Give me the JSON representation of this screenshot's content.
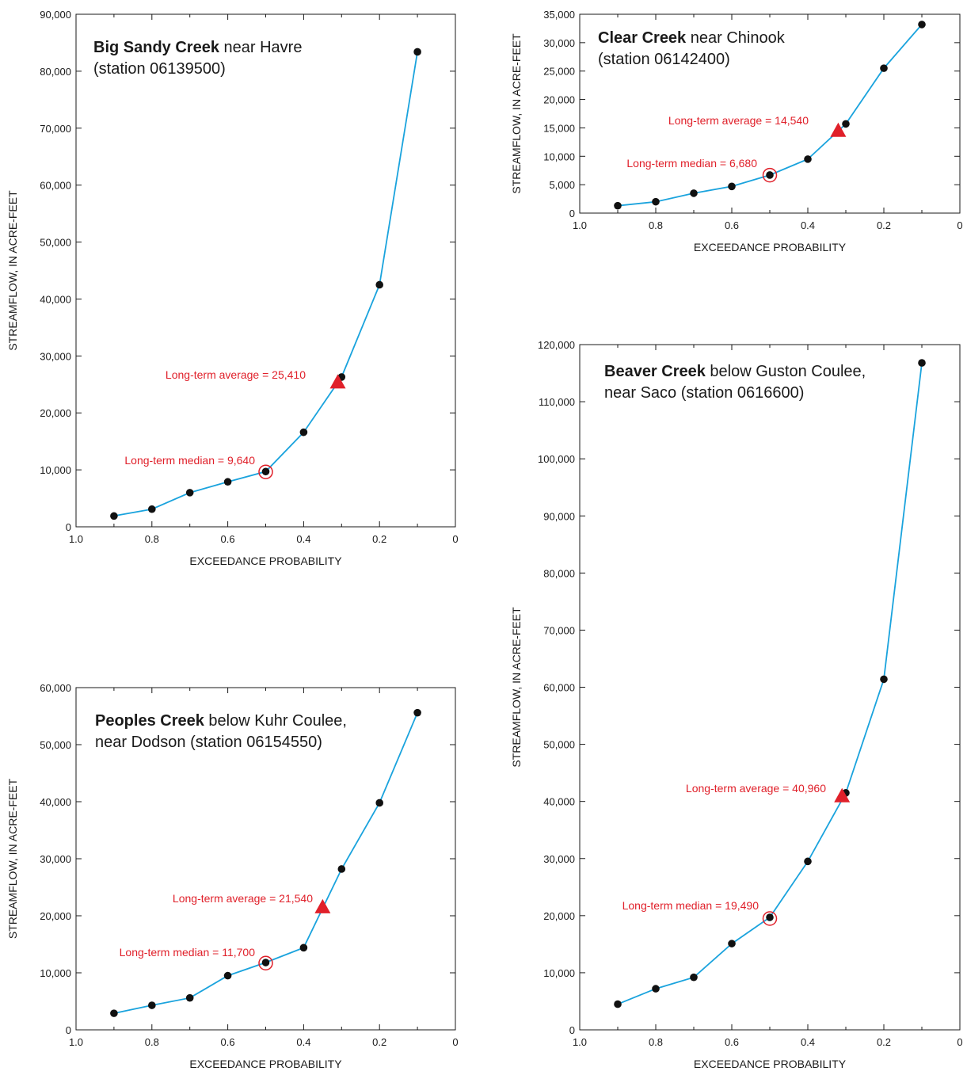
{
  "colors": {
    "line": "#1aa3dd",
    "point": "#111111",
    "annotation": "#e0202a",
    "axis": "#1a1a1a"
  },
  "chart_data": [
    {
      "type": "line",
      "title_bold": "Big Sandy Creek",
      "title_rest": " near Havre",
      "title_line2": "(station 06139500)",
      "xlabel": "EXCEEDANCE PROBABILITY",
      "ylabel": "STREAMFLOW, IN ACRE-FEET",
      "xlim": [
        1.0,
        0.0
      ],
      "ylim": [
        0,
        90000
      ],
      "xticks": [
        1.0,
        0.8,
        0.6,
        0.4,
        0.2,
        0
      ],
      "xtick_labels": [
        "1.0",
        "0.8",
        "0.6",
        "0.4",
        "0.2",
        "0"
      ],
      "yticks": [
        0,
        10000,
        20000,
        30000,
        40000,
        50000,
        60000,
        70000,
        80000,
        90000
      ],
      "ytick_labels": [
        "0",
        "10,000",
        "20,000",
        "30,000",
        "40,000",
        "50,000",
        "60,000",
        "70,000",
        "80,000",
        "90,000"
      ],
      "x": [
        0.9,
        0.8,
        0.7,
        0.6,
        0.5,
        0.4,
        0.3,
        0.2,
        0.1
      ],
      "y": [
        1900,
        3100,
        6000,
        7900,
        9700,
        16600,
        26300,
        42500,
        83400
      ],
      "average": {
        "label": "Long-term average = 25,410",
        "x": 0.31,
        "y": 25410
      },
      "median": {
        "label": "Long-term median = 9,640",
        "x": 0.5,
        "y": 9640
      }
    },
    {
      "type": "line",
      "title_bold": "Clear Creek",
      "title_rest": " near Chinook",
      "title_line2": "(station 06142400)",
      "xlabel": "EXCEEDANCE PROBABILITY",
      "ylabel": "STREAMFLOW, IN ACRE-FEET",
      "xlim": [
        1.0,
        0.0
      ],
      "ylim": [
        0,
        35000
      ],
      "xticks": [
        1.0,
        0.8,
        0.6,
        0.4,
        0.2,
        0
      ],
      "xtick_labels": [
        "1.0",
        "0.8",
        "0.6",
        "0.4",
        "0.2",
        "0"
      ],
      "yticks": [
        0,
        5000,
        10000,
        15000,
        20000,
        25000,
        30000,
        35000
      ],
      "ytick_labels": [
        "0",
        "5,000",
        "10,000",
        "15,000",
        "20,000",
        "25,000",
        "30,000",
        "35,000"
      ],
      "x": [
        0.9,
        0.8,
        0.7,
        0.6,
        0.5,
        0.4,
        0.3,
        0.2,
        0.1
      ],
      "y": [
        1300,
        2000,
        3500,
        4700,
        6700,
        9500,
        15700,
        25500,
        33200
      ],
      "average": {
        "label": "Long-term average = 14,540",
        "x": 0.32,
        "y": 14540
      },
      "median": {
        "label": "Long-term median = 6,680",
        "x": 0.5,
        "y": 6680
      }
    },
    {
      "type": "line",
      "title_bold": "Peoples Creek",
      "title_rest": " below Kuhr Coulee,",
      "title_line2": "near Dodson (station 06154550)",
      "xlabel": "EXCEEDANCE PROBABILITY",
      "ylabel": "STREAMFLOW, IN ACRE-FEET",
      "xlim": [
        1.0,
        0.0
      ],
      "ylim": [
        0,
        60000
      ],
      "xticks": [
        1.0,
        0.8,
        0.6,
        0.4,
        0.2,
        0
      ],
      "xtick_labels": [
        "1.0",
        "0.8",
        "0.6",
        "0.4",
        "0.2",
        "0"
      ],
      "yticks": [
        0,
        10000,
        20000,
        30000,
        40000,
        50000,
        60000
      ],
      "ytick_labels": [
        "0",
        "10,000",
        "20,000",
        "30,000",
        "40,000",
        "50,000",
        "60,000"
      ],
      "x": [
        0.9,
        0.8,
        0.7,
        0.6,
        0.5,
        0.4,
        0.3,
        0.2,
        0.1
      ],
      "y": [
        2900,
        4300,
        5600,
        9500,
        11800,
        14400,
        28200,
        39800,
        55600
      ],
      "average": {
        "label": "Long-term average = 21,540",
        "x": 0.35,
        "y": 21540
      },
      "median": {
        "label": "Long-term median = 11,700",
        "x": 0.5,
        "y": 11700
      }
    },
    {
      "type": "line",
      "title_bold": "Beaver Creek",
      "title_rest": " below Guston Coulee,",
      "title_line2": "near Saco (station 0616600)",
      "xlabel": "EXCEEDANCE PROBABILITY",
      "ylabel": "STREAMFLOW, IN ACRE-FEET",
      "xlim": [
        1.0,
        0.0
      ],
      "ylim": [
        0,
        120000
      ],
      "xticks": [
        1.0,
        0.8,
        0.6,
        0.4,
        0.2,
        0
      ],
      "xtick_labels": [
        "1.0",
        "0.8",
        "0.6",
        "0.4",
        "0.2",
        "0"
      ],
      "yticks": [
        0,
        10000,
        20000,
        30000,
        40000,
        50000,
        60000,
        70000,
        80000,
        90000,
        100000,
        110000,
        120000
      ],
      "ytick_labels": [
        "0",
        "10,000",
        "20,000",
        "30,000",
        "40,000",
        "50,000",
        "60,000",
        "70,000",
        "80,000",
        "90,000",
        "100,000",
        "110,000",
        "120,000"
      ],
      "x": [
        0.9,
        0.8,
        0.7,
        0.6,
        0.5,
        0.4,
        0.3,
        0.2,
        0.1
      ],
      "y": [
        4500,
        7200,
        9200,
        15100,
        19700,
        29500,
        41500,
        61400,
        116800
      ],
      "average": {
        "label": "Long-term average = 40,960",
        "x": 0.31,
        "y": 40960
      },
      "median": {
        "label": "Long-term median = 19,490",
        "x": 0.5,
        "y": 19490
      }
    }
  ]
}
